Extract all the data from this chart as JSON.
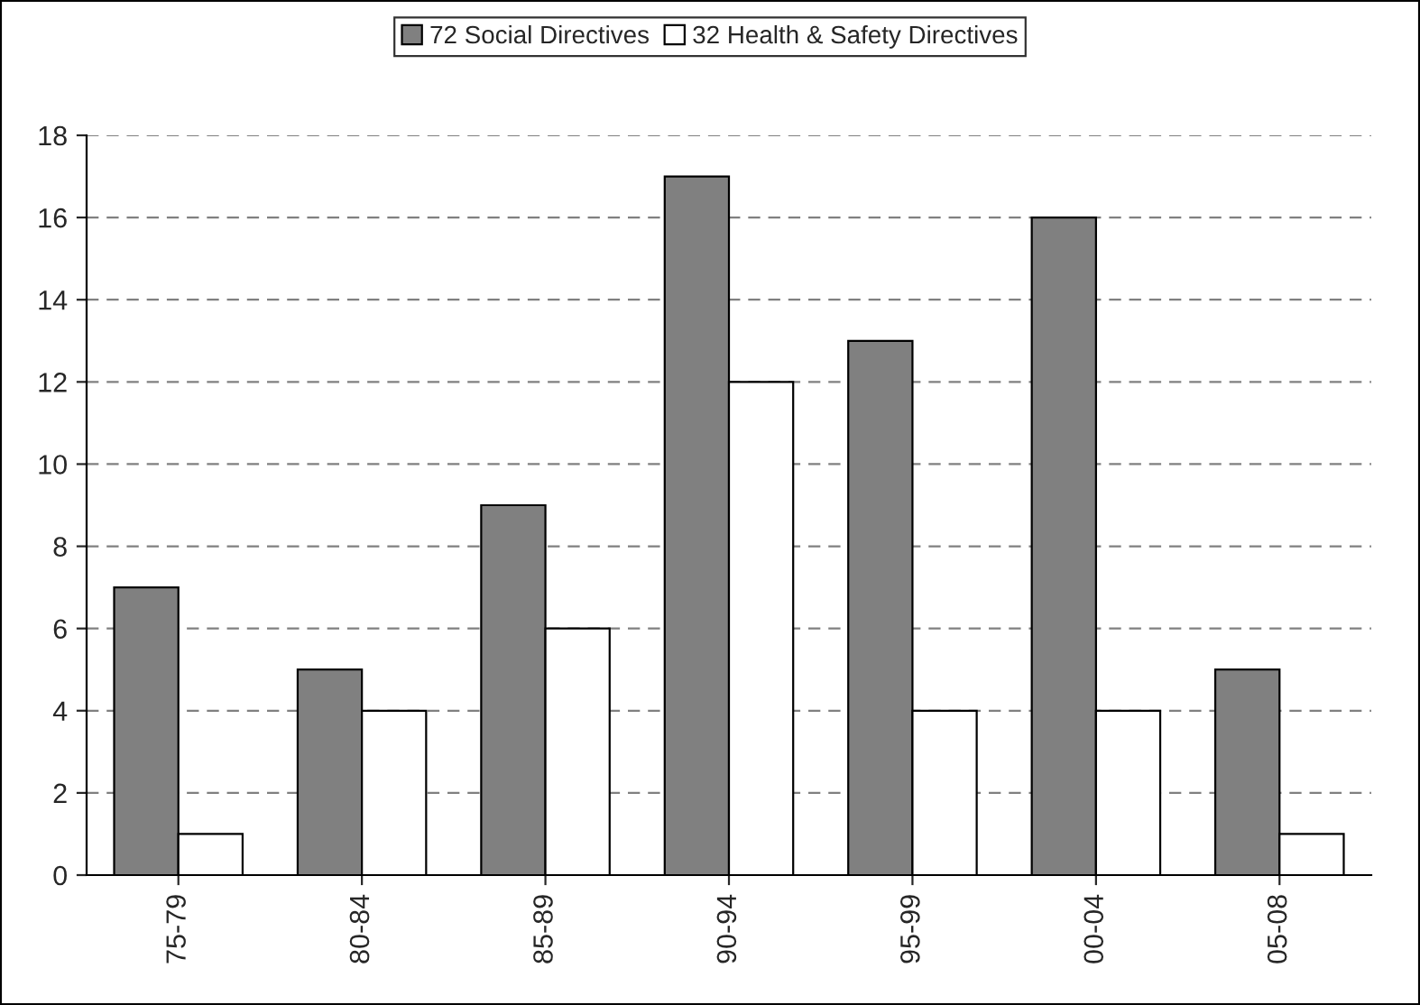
{
  "chart_data": {
    "type": "bar",
    "categories": [
      "75-79",
      "80-84",
      "85-89",
      "90-94",
      "95-99",
      "00-04",
      "05-08"
    ],
    "series": [
      {
        "name": "72 Social Directives",
        "color": "#808080",
        "values": [
          7,
          5,
          9,
          17,
          13,
          16,
          5
        ]
      },
      {
        "name": "32 Health & Safety Directives",
        "color": "#ffffff",
        "values": [
          1,
          4,
          6,
          12,
          4,
          4,
          1
        ]
      }
    ],
    "ylim": [
      0,
      18
    ],
    "yticks": [
      0,
      2,
      4,
      6,
      8,
      10,
      12,
      14,
      16,
      18
    ],
    "grid": "y",
    "legend": "top"
  }
}
